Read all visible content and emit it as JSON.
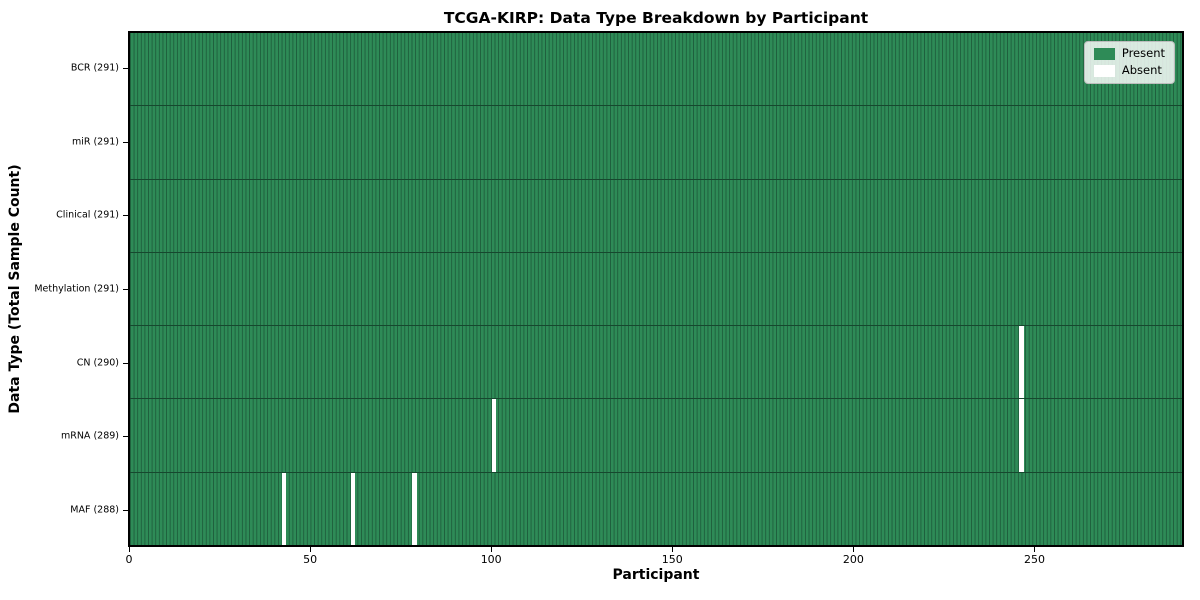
{
  "chart_data": {
    "type": "heatmap",
    "title": "TCGA-KIRP: Data Type Breakdown by Participant",
    "xlabel": "Participant",
    "ylabel": "Data Type (Total Sample Count)",
    "n_participants": 291,
    "xlim": [
      0,
      291
    ],
    "x_ticks": [
      0,
      50,
      100,
      150,
      200,
      250
    ],
    "grid": false,
    "legend": {
      "position": "upper right",
      "entries": [
        {
          "name": "present",
          "label": "Present",
          "color": "#2e8b57"
        },
        {
          "name": "absent",
          "label": "Absent",
          "color": "#ffffff"
        }
      ]
    },
    "rows": [
      {
        "data_type": "BCR",
        "total": 291,
        "tick_label": "BCR (291)",
        "absent_participants": []
      },
      {
        "data_type": "miR",
        "total": 291,
        "tick_label": "miR (291)",
        "absent_participants": []
      },
      {
        "data_type": "Clinical",
        "total": 291,
        "tick_label": "Clinical (291)",
        "absent_participants": []
      },
      {
        "data_type": "Methylation",
        "total": 291,
        "tick_label": "Methylation (291)",
        "absent_participants": []
      },
      {
        "data_type": "CN",
        "total": 290,
        "tick_label": "CN (290)",
        "absent_participants": [
          246
        ]
      },
      {
        "data_type": "mRNA",
        "total": 289,
        "tick_label": "mRNA (289)",
        "absent_participants": [
          100,
          246
        ]
      },
      {
        "data_type": "MAF",
        "total": 288,
        "tick_label": "MAF (288)",
        "absent_participants": [
          42,
          61,
          78
        ]
      }
    ],
    "colors": {
      "present": "#2e8b57",
      "absent": "#ffffff",
      "cell_edge": "#1e5e3c",
      "row_divider": "#16482e",
      "plot_border": "#000000",
      "background": "#ffffff"
    }
  }
}
